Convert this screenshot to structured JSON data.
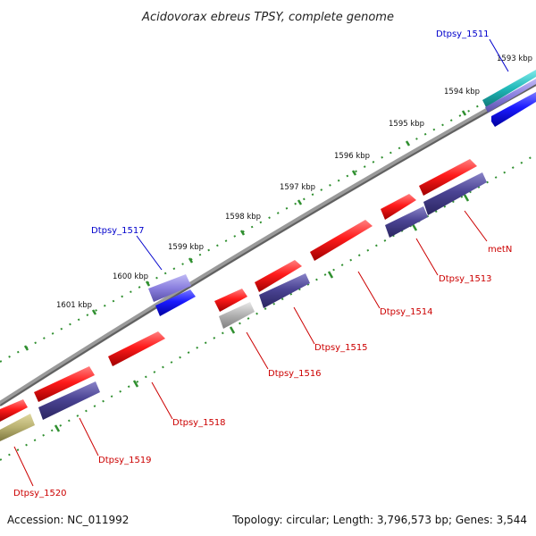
{
  "title": "Acidovorax ebreus TPSY, complete genome",
  "scale_ticks": [
    "1593 kbp",
    "1594 kbp",
    "1595 kbp",
    "1596 kbp",
    "1597 kbp",
    "1598 kbp",
    "1599 kbp",
    "1600 kbp",
    "1601 kbp"
  ],
  "gene_labels": {
    "dtpsy_1511": "Dtpsy_1511",
    "metn": "metN",
    "dtpsy_1513": "Dtpsy_1513",
    "dtpsy_1514": "Dtpsy_1514",
    "dtpsy_1515": "Dtpsy_1515",
    "dtpsy_1516": "Dtpsy_1516",
    "dtpsy_1517": "Dtpsy_1517",
    "dtpsy_1518": "Dtpsy_1518",
    "dtpsy_1519": "Dtpsy_1519",
    "dtpsy_1520": "Dtpsy_1520"
  },
  "footer": {
    "accession": "Accession: NC_011992",
    "summary": "Topology: circular; Length: 3,796,573 bp; Genes: 3,544"
  },
  "colors": {
    "forward_gene": "#ff1a1a",
    "reverse_gene": "#4b4494",
    "highlight_gene": "#1a1aff",
    "trna": "#b0b0b0",
    "pseudo": "#b8b070",
    "rrna": "#20b8b8",
    "backbone": "#7a7a7a",
    "scale": "#2f8f2f"
  }
}
